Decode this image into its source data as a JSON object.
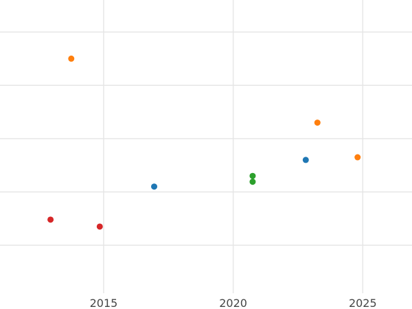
{
  "chart_data": {
    "type": "scatter",
    "title": "",
    "xlabel": "",
    "ylabel": "",
    "grid": true,
    "legend": "none",
    "xlim": [
      2011,
      2026.9
    ],
    "ylim": [
      0,
      5.5
    ],
    "x_ticks": [
      2015,
      2020,
      2025
    ],
    "x_tick_labels": [
      "2015",
      "2020",
      "2025"
    ],
    "y_ticks": [
      0.9,
      1.9,
      2.9,
      3.9,
      4.9
    ],
    "series": [
      {
        "color": "#1f77b4",
        "points": [
          {
            "x": 2016.95,
            "y": 2.0
          },
          {
            "x": 2022.8,
            "y": 2.5
          }
        ]
      },
      {
        "color": "#ff7f0e",
        "points": [
          {
            "x": 2013.75,
            "y": 4.4
          },
          {
            "x": 2023.25,
            "y": 3.2
          },
          {
            "x": 2024.8,
            "y": 2.55
          }
        ]
      },
      {
        "color": "#2ca02c",
        "points": [
          {
            "x": 2020.75,
            "y": 2.2
          },
          {
            "x": 2020.75,
            "y": 2.09
          }
        ]
      },
      {
        "color": "#d62728",
        "points": [
          {
            "x": 2012.95,
            "y": 1.38
          },
          {
            "x": 2014.85,
            "y": 1.25
          }
        ]
      }
    ]
  }
}
